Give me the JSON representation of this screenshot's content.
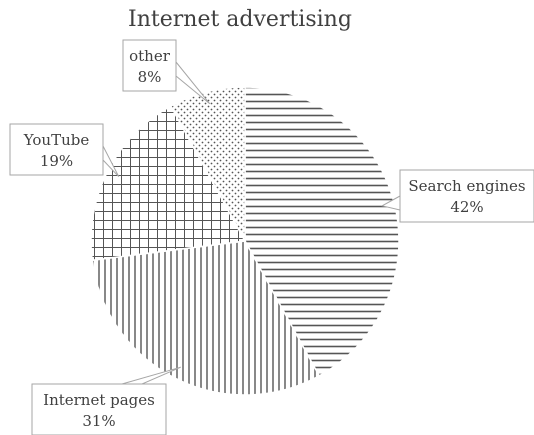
{
  "chart_data": {
    "type": "pie",
    "title": "Internet advertising",
    "slices": [
      {
        "label": "Search engines",
        "value": 42,
        "value_text": "42%",
        "pattern": "horizontal-lines"
      },
      {
        "label": "Internet pages",
        "value": 31,
        "value_text": "31%",
        "pattern": "vertical-lines"
      },
      {
        "label": "YouTube",
        "value": 19,
        "value_text": "19%",
        "pattern": "grid"
      },
      {
        "label": "other",
        "value": 8,
        "value_text": "8%",
        "pattern": "dots"
      }
    ],
    "start_angle": "top",
    "direction": "clockwise",
    "legend": "none",
    "data_labels": "callouts"
  }
}
